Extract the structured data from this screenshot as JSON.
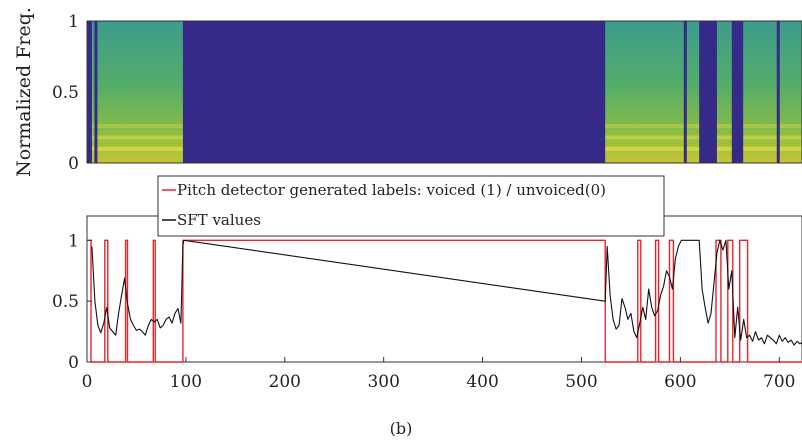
{
  "caption": "(b)",
  "chart_data": [
    {
      "type": "heatmap",
      "ylabel": "Normalized Freq.",
      "xlim": [
        0,
        723
      ],
      "ylim": [
        0,
        1
      ],
      "yticks": [
        "0",
        "0.5",
        "1"
      ],
      "background_color": "#352a87",
      "active_color": "#4aa572",
      "highlight_color": "#f5e44a",
      "active_segments": [
        [
          5,
          97
        ],
        [
          524,
          619
        ],
        [
          637,
          652
        ],
        [
          661,
          723
        ]
      ],
      "dark_stripes": [
        9,
        605,
        662,
        699
      ]
    },
    {
      "type": "line",
      "xlim": [
        0,
        723
      ],
      "ylim": [
        0,
        1.2
      ],
      "xticks": [
        "0",
        "100",
        "200",
        "300",
        "400",
        "500",
        "600",
        "700"
      ],
      "yticks": [
        "0",
        "0.5",
        "1"
      ],
      "legend": [
        "Pitch detector generated labels: voiced (1) / unvoiced(0)",
        "SFT values"
      ],
      "legend_position": "top",
      "series": [
        {
          "name": "Pitch detector generated labels: voiced (1) / unvoiced(0)",
          "color": "#e8242a",
          "x": [
            0,
            4,
            4,
            18,
            18,
            21,
            21,
            39,
            39,
            41,
            41,
            67,
            67,
            69,
            69,
            97,
            97,
            524,
            524,
            557,
            557,
            560,
            560,
            575,
            575,
            578,
            578,
            589,
            589,
            593,
            593,
            636,
            636,
            641,
            641,
            648,
            648,
            653,
            653,
            660,
            660,
            668,
            668,
            723
          ],
          "values": [
            1,
            1,
            0,
            0,
            1,
            1,
            0,
            0,
            1,
            1,
            0,
            0,
            1,
            1,
            0,
            0,
            1,
            1,
            0,
            0,
            1,
            1,
            0,
            0,
            1,
            1,
            0,
            0,
            1,
            1,
            0,
            0,
            1,
            1,
            0,
            0,
            1,
            1,
            0,
            0,
            1,
            1,
            0,
            0
          ]
        },
        {
          "name": "SFT values",
          "color": "#111111",
          "x": [
            5,
            8,
            11,
            14,
            17,
            20,
            23,
            26,
            29,
            32,
            35,
            38,
            41,
            44,
            47,
            50,
            53,
            56,
            59,
            62,
            65,
            68,
            71,
            74,
            77,
            80,
            83,
            86,
            89,
            92,
            95,
            97,
            98,
            524,
            526,
            529,
            532,
            535,
            538,
            541,
            544,
            547,
            550,
            553,
            556,
            559,
            562,
            565,
            568,
            571,
            574,
            577,
            580,
            583,
            586,
            589,
            592,
            595,
            598,
            601,
            604,
            607,
            610,
            613,
            616,
            619,
            622,
            625,
            628,
            631,
            634,
            637,
            640,
            643,
            646,
            649,
            652,
            655,
            658,
            661,
            664,
            667,
            670,
            673,
            676,
            679,
            682,
            685,
            688,
            691,
            694,
            697,
            700,
            703,
            706,
            709,
            712,
            715,
            718,
            721,
            723
          ],
          "values": [
            0.95,
            0.5,
            0.3,
            0.24,
            0.32,
            0.45,
            0.28,
            0.25,
            0.22,
            0.4,
            0.55,
            0.69,
            0.48,
            0.35,
            0.3,
            0.26,
            0.27,
            0.25,
            0.22,
            0.3,
            0.35,
            0.33,
            0.35,
            0.28,
            0.3,
            0.35,
            0.37,
            0.32,
            0.4,
            0.44,
            0.32,
            0.96,
            1,
            0.5,
            0.95,
            0.55,
            0.35,
            0.27,
            0.3,
            0.52,
            0.45,
            0.35,
            0.4,
            0.25,
            0.2,
            0.32,
            0.45,
            0.35,
            0.6,
            0.45,
            0.38,
            0.42,
            0.55,
            0.62,
            0.75,
            0.7,
            0.6,
            0.85,
            0.95,
            1,
            1,
            1,
            1,
            1,
            1,
            1,
            0.6,
            0.45,
            0.32,
            0.4,
            0.65,
            0.9,
            1,
            0.92,
            1,
            0.6,
            0.75,
            0.2,
            0.45,
            0.18,
            0.35,
            0.2,
            0.22,
            0.17,
            0.25,
            0.18,
            0.2,
            0.15,
            0.22,
            0.2,
            0.18,
            0.15,
            0.22,
            0.17,
            0.2,
            0.16,
            0.18,
            0.14,
            0.17,
            0.15,
            0.16
          ]
        }
      ]
    }
  ]
}
